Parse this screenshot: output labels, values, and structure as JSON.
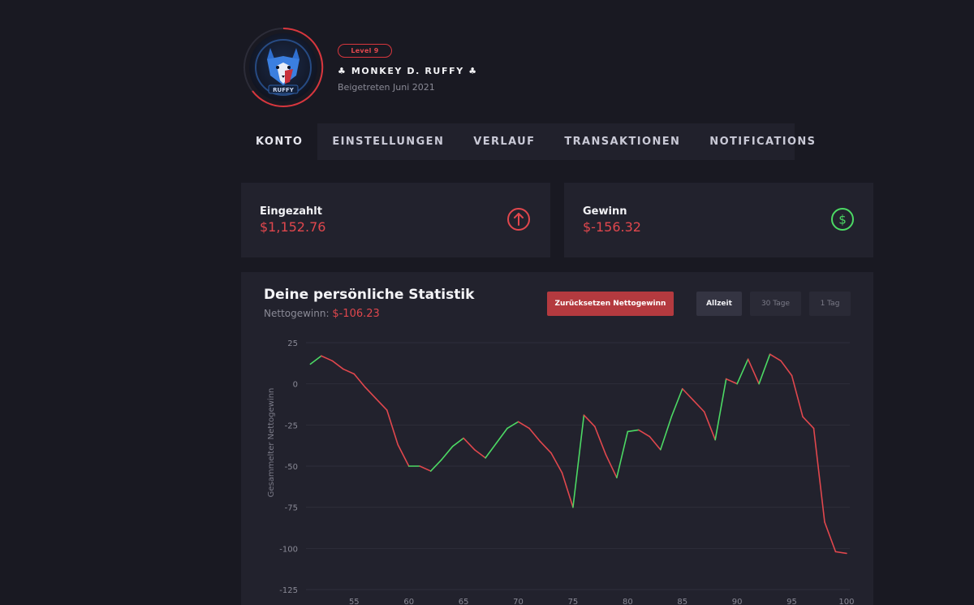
{
  "profile": {
    "level": "Level 9",
    "username": "♣ MONKEY D. RUFFY ♣",
    "joined": "Beigetreten Juni 2021",
    "avatar_text": "RUFFY",
    "accent": "#d8363d"
  },
  "tabs": [
    {
      "label": "KONTO",
      "active": true
    },
    {
      "label": "EINSTELLUNGEN",
      "active": false
    },
    {
      "label": "VERLAUF",
      "active": false
    },
    {
      "label": "TRANSAKTIONEN",
      "active": false
    },
    {
      "label": "NOTIFICATIONS",
      "active": false
    }
  ],
  "cards": {
    "deposit": {
      "label": "Eingezahlt",
      "value": "$1,152.76",
      "icon": "arrow-up-circle-icon",
      "color": "#e0474d"
    },
    "profit": {
      "label": "Gewinn",
      "value": "$-156.32",
      "icon": "dollar-circle-icon",
      "color": "#4cd964"
    }
  },
  "stats": {
    "title": "Deine persönliche Statistik",
    "net_label": "Nettogewinn:",
    "net_value": "$-106.23",
    "reset_button": "Zurücksetzen Nettogewinn",
    "ranges": [
      "Allzeit",
      "30 Tage",
      "1 Tag"
    ],
    "active_range": "Allzeit"
  },
  "chart_data": {
    "type": "line",
    "ylabel": "Gesammelter Nettogewinn",
    "xlabel": "",
    "ylim": [
      -125,
      25
    ],
    "xlim": [
      50.6,
      100.3
    ],
    "yticks": [
      25,
      0,
      -25,
      -50,
      -75,
      -100,
      -125
    ],
    "xticks": [
      55,
      60,
      65,
      70,
      75,
      80,
      85,
      90,
      95,
      100
    ],
    "grid": true,
    "rise_color": "#4cd964",
    "fall_color": "#e0474d",
    "x": [
      51,
      52,
      53,
      54,
      55,
      56,
      57,
      58,
      59,
      60,
      61,
      62,
      63,
      64,
      65,
      66,
      67,
      68,
      69,
      70,
      71,
      72,
      73,
      74,
      75,
      76,
      77,
      78,
      79,
      80,
      81,
      82,
      83,
      84,
      85,
      86,
      87,
      88,
      89,
      90,
      91,
      92,
      93,
      94,
      95,
      96,
      97,
      98,
      99,
      100
    ],
    "y": [
      12,
      17,
      14,
      9,
      6,
      -2,
      -9,
      -16,
      -37,
      -50,
      -50,
      -53,
      -46,
      -38,
      -33,
      -40,
      -45,
      -36,
      -27,
      -23,
      -27,
      -35,
      -42,
      -54,
      -75,
      -19,
      -26,
      -43,
      -57,
      -29,
      -28,
      -32,
      -40,
      -20,
      -3,
      -10,
      -17,
      -34,
      3,
      0,
      15,
      0,
      18,
      14,
      5,
      -20,
      -27,
      -84,
      -102,
      -103
    ]
  }
}
